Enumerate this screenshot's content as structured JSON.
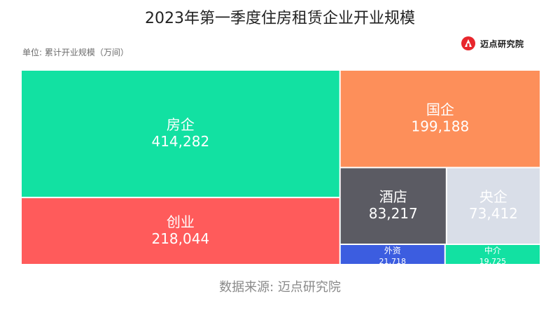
{
  "page": {
    "title": "2023年第一季度住房租赁企业开业规模",
    "unit_label": "单位: 累计开业规模（万间）",
    "source": "数据来源: 迈点研究院",
    "logo_text": "迈点研究院"
  },
  "chart_data": {
    "type": "treemap",
    "items": [
      {
        "label": "房企",
        "value": 414282,
        "value_text": "414,282",
        "color": "#12e1a2"
      },
      {
        "label": "创业",
        "value": 218044,
        "value_text": "218,044",
        "color": "#ff5b5b"
      },
      {
        "label": "国企",
        "value": 199188,
        "value_text": "199,188",
        "color": "#fd8f5a"
      },
      {
        "label": "酒店",
        "value": 83217,
        "value_text": "83,217",
        "color": "#5b5b63"
      },
      {
        "label": "央企",
        "value": 73412,
        "value_text": "73,412",
        "color": "#d9dee8"
      },
      {
        "label": "外资",
        "value": 21718,
        "value_text": "21,718",
        "color": "#3c5de0"
      },
      {
        "label": "中介",
        "value": 19725,
        "value_text": "19,725",
        "color": "#12e1a2"
      }
    ]
  }
}
